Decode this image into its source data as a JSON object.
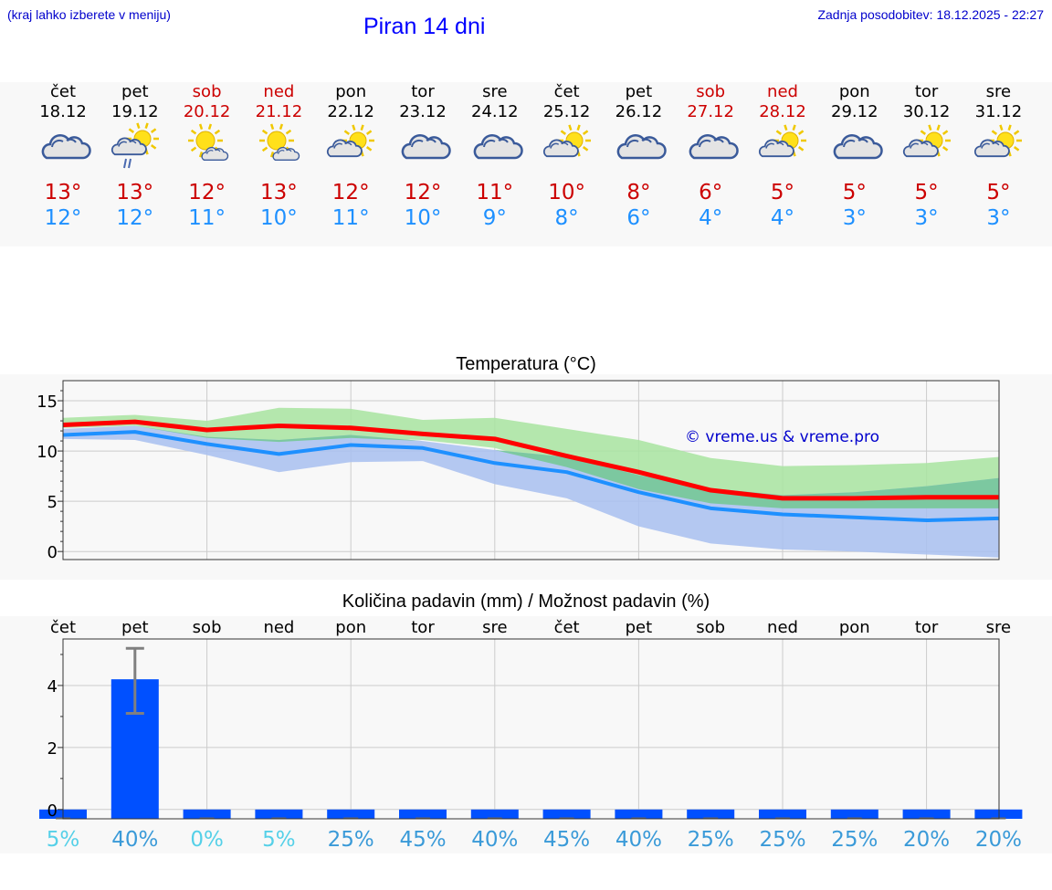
{
  "header": {
    "hint": "(kraj lahko izberete v meniju)",
    "title": "Piran 14 dni",
    "updated": "Zadnja posodobitev: 18.12.2025 - 22:27"
  },
  "forecast": [
    {
      "day": "čet",
      "date": "18.12",
      "weekend": false,
      "icon": "cloudy-icon",
      "tmax": "13°",
      "tmin": "12°"
    },
    {
      "day": "pet",
      "date": "19.12",
      "weekend": false,
      "icon": "sun-cloud-drizzle-icon",
      "tmax": "13°",
      "tmin": "12°"
    },
    {
      "day": "sob",
      "date": "20.12",
      "weekend": true,
      "icon": "sun-small-cloud-icon",
      "tmax": "12°",
      "tmin": "11°"
    },
    {
      "day": "ned",
      "date": "21.12",
      "weekend": true,
      "icon": "sun-small-cloud-icon",
      "tmax": "13°",
      "tmin": "10°"
    },
    {
      "day": "pon",
      "date": "22.12",
      "weekend": false,
      "icon": "sun-cloud-icon",
      "tmax": "12°",
      "tmin": "11°"
    },
    {
      "day": "tor",
      "date": "23.12",
      "weekend": false,
      "icon": "cloudy-icon",
      "tmax": "12°",
      "tmin": "10°"
    },
    {
      "day": "sre",
      "date": "24.12",
      "weekend": false,
      "icon": "cloudy-icon",
      "tmax": "11°",
      "tmin": "9°"
    },
    {
      "day": "čet",
      "date": "25.12",
      "weekend": false,
      "icon": "sun-cloud-icon",
      "tmax": "10°",
      "tmin": "8°"
    },
    {
      "day": "pet",
      "date": "26.12",
      "weekend": false,
      "icon": "cloudy-icon",
      "tmax": "8°",
      "tmin": "6°"
    },
    {
      "day": "sob",
      "date": "27.12",
      "weekend": true,
      "icon": "cloudy-icon",
      "tmax": "6°",
      "tmin": "4°"
    },
    {
      "day": "ned",
      "date": "28.12",
      "weekend": true,
      "icon": "sun-cloud-icon",
      "tmax": "5°",
      "tmin": "4°"
    },
    {
      "day": "pon",
      "date": "29.12",
      "weekend": false,
      "icon": "cloudy-icon",
      "tmax": "5°",
      "tmin": "3°"
    },
    {
      "day": "tor",
      "date": "30.12",
      "weekend": false,
      "icon": "sun-cloud-icon",
      "tmax": "5°",
      "tmin": "3°"
    },
    {
      "day": "sre",
      "date": "31.12",
      "weekend": false,
      "icon": "sun-cloud-icon",
      "tmax": "5°",
      "tmin": "3°"
    }
  ],
  "colors": {
    "max_line": "#ff0000",
    "min_line": "#1e90ff",
    "max_band": "#a8e4a0",
    "min_band": "#a8c0f0",
    "overlap_band": "#7cc8a0",
    "bar": "#0050ff",
    "error_bar": "#808080"
  },
  "chart_data": [
    {
      "type": "line",
      "title": "Temperatura (°C)",
      "watermark": "© vreme.us & vreme.pro",
      "ylim": [
        -0.8,
        17
      ],
      "yticks": [
        0,
        5,
        10,
        15
      ],
      "x": [
        0,
        1,
        2,
        3,
        4,
        5,
        6,
        7,
        8,
        9,
        10,
        11,
        12,
        13
      ],
      "series": [
        {
          "name": "max",
          "values": [
            12.6,
            12.9,
            12.1,
            12.5,
            12.3,
            11.7,
            11.2,
            9.5,
            7.9,
            6.1,
            5.3,
            5.3,
            5.4,
            5.4
          ]
        },
        {
          "name": "min",
          "values": [
            11.6,
            11.9,
            10.7,
            9.7,
            10.6,
            10.3,
            8.8,
            7.9,
            5.9,
            4.3,
            3.7,
            3.4,
            3.1,
            3.3
          ]
        }
      ],
      "bands": [
        {
          "name": "max_range",
          "low": [
            12.3,
            12.5,
            11.3,
            10.9,
            11.3,
            11.1,
            10.3,
            8.4,
            6.2,
            4.8,
            4.3,
            4.3,
            4.3,
            4.3
          ],
          "high": [
            13.3,
            13.6,
            13.0,
            14.3,
            14.2,
            13.1,
            13.3,
            12.2,
            11.1,
            9.3,
            8.5,
            8.6,
            8.8,
            9.4
          ]
        },
        {
          "name": "min_range",
          "low": [
            11.2,
            11.1,
            9.6,
            7.9,
            8.9,
            9.0,
            6.7,
            5.3,
            2.5,
            0.8,
            0.2,
            0.0,
            -0.3,
            -0.6
          ],
          "high": [
            12.2,
            12.5,
            11.4,
            11.1,
            11.6,
            11.0,
            10.1,
            9.4,
            7.6,
            6.3,
            5.6,
            5.9,
            6.5,
            7.3
          ]
        }
      ]
    },
    {
      "type": "bar",
      "title": "Količina padavin (mm) / Možnost padavin (%)",
      "categories": [
        "čet",
        "pet",
        "sob",
        "ned",
        "pon",
        "tor",
        "sre",
        "čet",
        "pet",
        "sob",
        "ned",
        "pon",
        "tor",
        "sre"
      ],
      "ylim": [
        -0.3,
        5.5
      ],
      "yticks": [
        0,
        2,
        4
      ],
      "values": [
        0,
        4.2,
        0,
        0,
        0,
        0,
        0,
        0,
        0,
        0,
        0,
        0,
        0,
        0
      ],
      "error": [
        null,
        [
          3.1,
          5.2
        ],
        null,
        null,
        null,
        null,
        null,
        null,
        null,
        null,
        null,
        null,
        null,
        null
      ],
      "probability_labels": [
        "5%",
        "40%",
        "0%",
        "5%",
        "25%",
        "45%",
        "40%",
        "45%",
        "40%",
        "25%",
        "25%",
        "25%",
        "20%",
        "20%"
      ],
      "probability_colors": [
        "#55d0e8",
        "#3a9ad8",
        "#55d0e8",
        "#55d0e8",
        "#3a9ad8",
        "#3a9ad8",
        "#3a9ad8",
        "#3a9ad8",
        "#3a9ad8",
        "#3a9ad8",
        "#3a9ad8",
        "#3a9ad8",
        "#3a9ad8",
        "#3a9ad8"
      ]
    }
  ]
}
